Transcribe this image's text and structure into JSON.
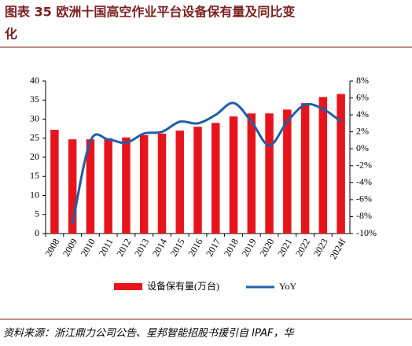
{
  "chart_data": {
    "type": "bar_line",
    "title": "图表 35   欧洲十国高空作业平台设备保有量及同比变化",
    "source": "资料来源：浙江鼎力公司公告、星邦智能招股书援引自 IPAF，华",
    "categories": [
      "2008",
      "2009",
      "2010",
      "2011",
      "2012",
      "2013",
      "2014",
      "2015",
      "2016",
      "2017",
      "2018",
      "2019",
      "2020",
      "2021",
      "2022",
      "2023",
      "2024f"
    ],
    "series": [
      {
        "name": "设备保有量(万台)",
        "type": "bar",
        "color": "#e8141b",
        "values": [
          27.2,
          24.7,
          24.7,
          25.0,
          25.2,
          25.8,
          26.2,
          27.0,
          28.0,
          29.0,
          30.7,
          31.5,
          31.5,
          32.5,
          34.2,
          35.8,
          36.6
        ]
      },
      {
        "name": "YoY",
        "type": "line",
        "axis": "y2",
        "color": "#1f5fa8",
        "values": [
          null,
          -8.9,
          0.9,
          1.1,
          0.7,
          1.8,
          2.0,
          3.2,
          3.0,
          4.0,
          5.4,
          3.2,
          0.4,
          3.2,
          5.2,
          4.7,
          3.2
        ]
      }
    ],
    "ylim": [
      0,
      40
    ],
    "yticks": [
      0,
      5,
      10,
      15,
      20,
      25,
      30,
      35,
      40
    ],
    "y2lim": [
      -10,
      8
    ],
    "y2ticks": [
      {
        "value": -10,
        "label": "-10%"
      },
      {
        "value": -8,
        "label": "-8%"
      },
      {
        "value": -6,
        "label": "-6%"
      },
      {
        "value": -4,
        "label": "-4%"
      },
      {
        "value": -2,
        "label": "-2%"
      },
      {
        "value": 0,
        "label": "0%"
      },
      {
        "value": 2,
        "label": "2%"
      },
      {
        "value": 4,
        "label": "4%"
      },
      {
        "value": 6,
        "label": "6%"
      },
      {
        "value": 8,
        "label": "8%"
      }
    ]
  }
}
